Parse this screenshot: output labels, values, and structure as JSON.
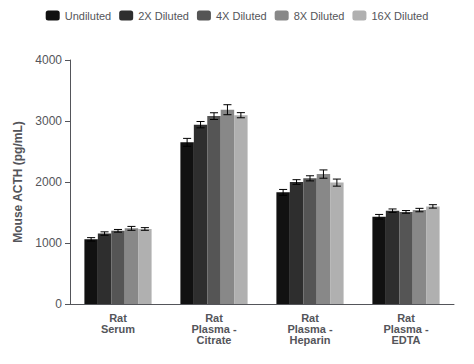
{
  "chart_data": {
    "type": "bar",
    "ylabel": "Mouse ACTH (pg/mL)",
    "categories": [
      "Rat\nSerum",
      "Rat\nPlasma -\nCitrate",
      "Rat\nPlasma -\nHeparin",
      "Rat\nPlasma -\nEDTA"
    ],
    "series": [
      {
        "name": "Undiluted",
        "color": "#111111",
        "values": [
          1060,
          2650,
          1830,
          1430
        ],
        "errors": [
          28,
          65,
          48,
          38
        ]
      },
      {
        "name": "2X Diluted",
        "color": "#2e2e2e",
        "values": [
          1155,
          2940,
          2000,
          1530
        ],
        "errors": [
          28,
          52,
          38,
          28
        ]
      },
      {
        "name": "4X Diluted",
        "color": "#555555",
        "values": [
          1200,
          3080,
          2060,
          1510
        ],
        "errors": [
          22,
          55,
          42,
          22
        ]
      },
      {
        "name": "8X Diluted",
        "color": "#888888",
        "values": [
          1240,
          3185,
          2130,
          1540
        ],
        "errors": [
          32,
          82,
          68,
          28
        ]
      },
      {
        "name": "16X Diluted",
        "color": "#b0b0b0",
        "values": [
          1230,
          3095,
          1990,
          1600
        ],
        "errors": [
          22,
          42,
          58,
          28
        ]
      }
    ],
    "ylim": [
      0,
      4000
    ],
    "yticks": [
      0,
      1000,
      2000,
      3000,
      4000
    ],
    "grid": false,
    "legend": "top"
  }
}
